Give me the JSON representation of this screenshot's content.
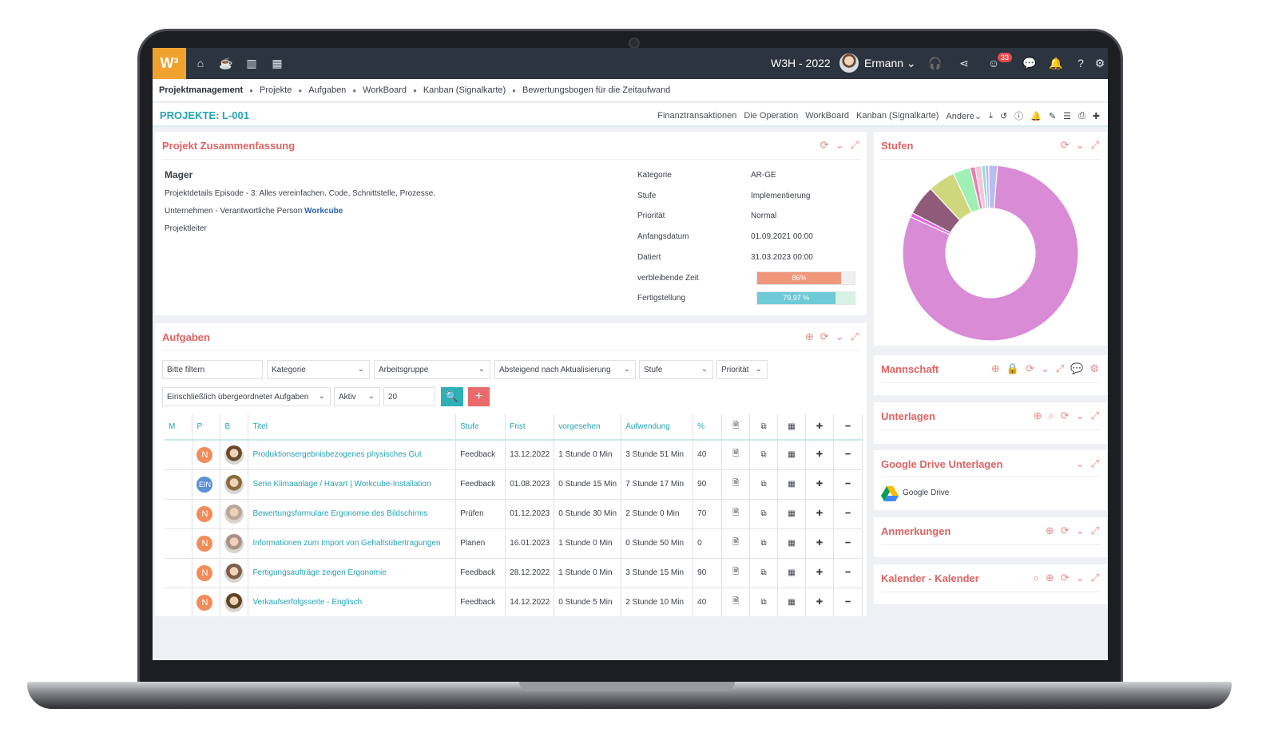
{
  "topbar": {
    "logo": "W³",
    "title": "W3H - 2022",
    "user": "Ermann",
    "notification_count": "33"
  },
  "breadcrumb": [
    "Projektmanagement",
    "Projekte",
    "Aufgaben",
    "WorkBoard",
    "Kanban (Signalkarte)",
    "Bewertungsbogen für die Zeitaufwand"
  ],
  "project": {
    "title": "PROJEKTE: L-001",
    "links": [
      "Finanztransaktionen",
      "Die Operation",
      "WorkBoard",
      "Kanban (Signalkarte)",
      "Andere"
    ]
  },
  "summary": {
    "title": "Projekt Zusammenfassung",
    "name": "Mager",
    "details": "Projektdetails Episode - 3: Alles vereinfachen. Code, Schnittstelle, Prozesse.",
    "company_label": "Unternehmen - Verantwortliche Person",
    "company_link": "Workcube",
    "manager_label": "Projektleiter",
    "fields": [
      {
        "key": "Kategorie",
        "value": "AR-GE"
      },
      {
        "key": "Stufe",
        "value": "Implementierung"
      },
      {
        "key": "Priorität",
        "value": "Normal"
      },
      {
        "key": "Anfangsdatum",
        "value": "01.09.2021 00:00"
      },
      {
        "key": "Datiert",
        "value": "31.03.2023 00:00"
      }
    ],
    "remaining_label": "verbleibende Zeit",
    "remaining_value": "86%",
    "remaining_fraction": 0.86,
    "completion_label": "Fertigstellung",
    "completion_value": "79,97 %",
    "completion_fraction": 0.7997
  },
  "tasks": {
    "title": "Aufgaben",
    "filters": {
      "search_placeholder": "Bitte filtern",
      "category": "Kategorie",
      "workgroup": "Arbeitsgruppe",
      "sort": "Absteigend nach Aktualisierung",
      "stage": "Stufe",
      "priority": "Priorität",
      "include": "Einschließlich übergeordneter Aufgaben",
      "status": "Aktiv",
      "count": "20"
    },
    "columns": [
      "M",
      "P",
      "B",
      "Titel",
      "Stufe",
      "Frist",
      "vorgesehen",
      "Aufwendung",
      "%"
    ],
    "rows": [
      {
        "p": "N",
        "title": "Produktionsergebnisbezogenes physisches Gut",
        "stage": "Feedback",
        "deadline": "13.12.2022",
        "planned": "1 Stunde 0 Min",
        "spent": "3 Stunde 51 Min",
        "pct": "40"
      },
      {
        "p": "EIN",
        "title": "Serie Klimaanlage / Havart | Workcube-Installation",
        "stage": "Feedback",
        "deadline": "01.08.2023",
        "planned": "0 Stunde 15 Min",
        "spent": "7 Stunde 17 Min",
        "pct": "90"
      },
      {
        "p": "N",
        "title": "Bewertungsformulare Ergonomie des Bildschirms",
        "stage": "Prüfen",
        "deadline": "01.12.2023",
        "planned": "0 Stunde 30 Min",
        "spent": "2 Stunde 0 Min",
        "pct": "70"
      },
      {
        "p": "N",
        "title": "Informationen zum Import von Gehaltsübertragungen",
        "stage": "Planen",
        "deadline": "16.01.2023",
        "planned": "1 Stunde 0 Min",
        "spent": "0 Stunde 50 Min",
        "pct": "0"
      },
      {
        "p": "N",
        "title": "Fertigungsaufträge zeigen Ergonomie",
        "stage": "Feedback",
        "deadline": "28.12.2022",
        "planned": "1 Stunde 0 Min",
        "spent": "3 Stunde 15 Min",
        "pct": "90"
      },
      {
        "p": "N",
        "title": "Verkaufserfolgsseite - Englisch",
        "stage": "Feedback",
        "deadline": "14.12.2022",
        "planned": "0 Stunde 5 Min",
        "spent": "2 Stunde 10 Min",
        "pct": "40"
      }
    ]
  },
  "sidebar": {
    "stufen_title": "Stufen",
    "mannschaft_title": "Mannschaft",
    "unterlagen_title": "Unterlagen",
    "gdrive_title": "Google Drive Unterlagen",
    "gdrive_item": "Google Drive",
    "anmerkungen_title": "Anmerkungen",
    "kalender_title": "Kalender - Kalender"
  },
  "chart_data": {
    "type": "pie",
    "donut": true,
    "title": "",
    "values": [
      80.5,
      0.8,
      5.5,
      5.0,
      3.2,
      0.9,
      1.2,
      0.7,
      0.6,
      1.6
    ],
    "colors": [
      "#d98bd6",
      "#e06ad9",
      "#8f5b78",
      "#cfd67c",
      "#9ff0b5",
      "#f07ab0",
      "#f5c6d8",
      "#8de0d8",
      "#c9b0f0",
      "#b6bdf2"
    ]
  }
}
